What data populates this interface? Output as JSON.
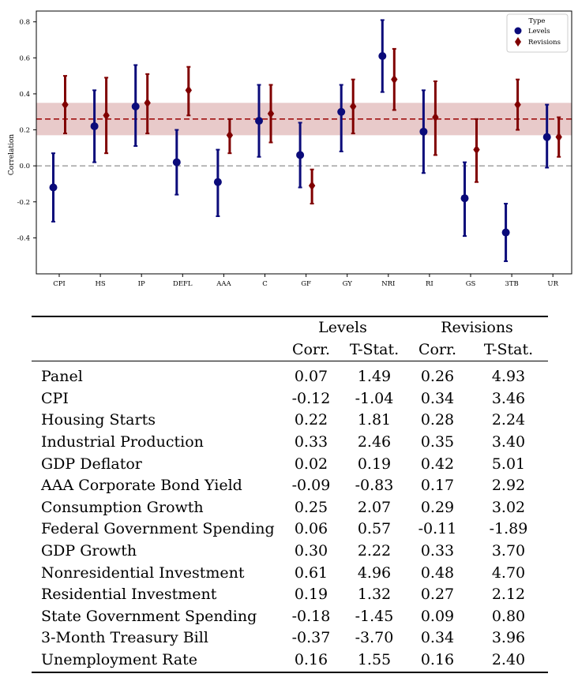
{
  "chart_data": {
    "type": "errorbar",
    "ylabel": "Correlation",
    "categories": [
      "CPI",
      "HS",
      "IP",
      "DEFL",
      "AAA",
      "C",
      "GF",
      "GY",
      "NRI",
      "RI",
      "GS",
      "3TB",
      "UR"
    ],
    "yticks": [
      "-0.4",
      "-0.2",
      "0.0",
      "0.2",
      "0.4",
      "0.6",
      "0.8"
    ],
    "ylim": [
      -0.6,
      0.86
    ],
    "legend": {
      "title": "Type",
      "position": "top-right"
    },
    "series": [
      {
        "name": "Levels",
        "marker": "circle",
        "color": "#0b0b7a",
        "values": [
          -0.12,
          0.22,
          0.33,
          0.02,
          -0.09,
          0.25,
          0.06,
          0.3,
          0.61,
          0.19,
          -0.18,
          -0.37,
          0.16
        ],
        "lower": [
          -0.31,
          0.02,
          0.11,
          -0.16,
          -0.28,
          0.05,
          -0.12,
          0.08,
          0.41,
          -0.04,
          -0.39,
          -0.53,
          -0.01
        ],
        "upper": [
          0.07,
          0.42,
          0.56,
          0.2,
          0.09,
          0.45,
          0.24,
          0.45,
          0.81,
          0.42,
          0.02,
          -0.21,
          0.34
        ]
      },
      {
        "name": "Revisions",
        "marker": "diamond",
        "color": "#800000",
        "values": [
          0.34,
          0.28,
          0.35,
          0.42,
          0.17,
          0.29,
          -0.11,
          0.33,
          0.48,
          0.27,
          0.09,
          0.34,
          0.16
        ],
        "lower": [
          0.18,
          0.07,
          0.18,
          0.28,
          0.07,
          0.13,
          -0.21,
          0.18,
          0.31,
          0.06,
          -0.09,
          0.2,
          0.05
        ],
        "upper": [
          0.5,
          0.49,
          0.51,
          0.55,
          0.26,
          0.45,
          -0.02,
          0.48,
          0.65,
          0.47,
          0.26,
          0.48,
          0.27
        ]
      }
    ],
    "reference_lines": [
      {
        "y": 0.26,
        "style": "dashed",
        "color": "#a01010",
        "band": [
          0.17,
          0.35
        ],
        "band_color": "#d9a6a6"
      },
      {
        "y": 0.0,
        "style": "dashed",
        "color": "#9a9a9a"
      }
    ]
  },
  "table": {
    "group_headers": [
      "Levels",
      "Revisions"
    ],
    "sub_headers": [
      "Corr.",
      "T-Stat.",
      "Corr.",
      "T-Stat."
    ],
    "rows": [
      {
        "label": "Panel",
        "values": [
          "0.07",
          "1.49",
          "0.26",
          "4.93"
        ]
      },
      {
        "label": "CPI",
        "values": [
          "-0.12",
          "-1.04",
          "0.34",
          "3.46"
        ]
      },
      {
        "label": "Housing Starts",
        "values": [
          "0.22",
          "1.81",
          "0.28",
          "2.24"
        ]
      },
      {
        "label": "Industrial Production",
        "values": [
          "0.33",
          "2.46",
          "0.35",
          "3.40"
        ]
      },
      {
        "label": "GDP Deflator",
        "values": [
          "0.02",
          "0.19",
          "0.42",
          "5.01"
        ]
      },
      {
        "label": "AAA Corporate Bond Yield",
        "values": [
          "-0.09",
          "-0.83",
          "0.17",
          "2.92"
        ]
      },
      {
        "label": "Consumption Growth",
        "values": [
          "0.25",
          "2.07",
          "0.29",
          "3.02"
        ]
      },
      {
        "label": "Federal Government Spending",
        "values": [
          "0.06",
          "0.57",
          "-0.11",
          "-1.89"
        ]
      },
      {
        "label": "GDP Growth",
        "values": [
          "0.30",
          "2.22",
          "0.33",
          "3.70"
        ]
      },
      {
        "label": "Nonresidential Investment",
        "values": [
          "0.61",
          "4.96",
          "0.48",
          "4.70"
        ]
      },
      {
        "label": "Residential Investment",
        "values": [
          "0.19",
          "1.32",
          "0.27",
          "2.12"
        ]
      },
      {
        "label": "State Government Spending",
        "values": [
          "-0.18",
          "-1.45",
          "0.09",
          "0.80"
        ]
      },
      {
        "label": "3-Month Treasury Bill",
        "values": [
          "-0.37",
          "-3.70",
          "0.34",
          "3.96"
        ]
      },
      {
        "label": "Unemployment Rate",
        "values": [
          "0.16",
          "1.55",
          "0.16",
          "2.40"
        ]
      }
    ]
  }
}
